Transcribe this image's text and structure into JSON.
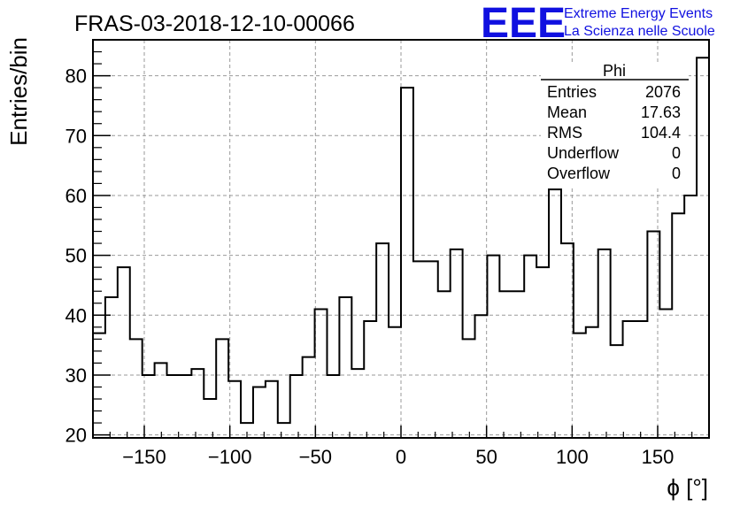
{
  "chart_data": {
    "type": "histogram",
    "title": "FRAS-03-2018-12-10-00066",
    "xlabel": "ϕ [°]",
    "ylabel": "Entries/bin",
    "xlim": [
      -180,
      180
    ],
    "ylim": [
      19.5,
      86
    ],
    "grid": true,
    "x_ticks": [
      -150,
      -100,
      -50,
      0,
      50,
      100,
      150
    ],
    "x_tick_labels": [
      "−150",
      "−100",
      "−50",
      "0",
      "50",
      "100",
      "150"
    ],
    "y_ticks": [
      20,
      30,
      40,
      50,
      60,
      70,
      80
    ],
    "y_tick_labels": [
      "20",
      "30",
      "40",
      "50",
      "60",
      "70",
      "80"
    ],
    "bin_width": 7.2,
    "values": [
      37,
      43,
      48,
      36,
      30,
      32,
      30,
      30,
      31,
      26,
      36,
      29,
      22,
      28,
      29,
      22,
      30,
      33,
      41,
      30,
      43,
      31,
      39,
      52,
      38,
      78,
      49,
      49,
      44,
      51,
      36,
      40,
      50,
      44,
      44,
      50,
      48,
      61,
      52,
      37,
      38,
      51,
      35,
      39,
      39,
      54,
      41,
      57,
      60,
      83
    ],
    "stats": {
      "name": "Phi",
      "rows": [
        {
          "label": "Entries",
          "value": "2076"
        },
        {
          "label": "Mean",
          "value": "17.63"
        },
        {
          "label": "RMS",
          "value": "104.4"
        },
        {
          "label": "Underflow",
          "value": "0"
        },
        {
          "label": "Overflow",
          "value": "0"
        }
      ]
    }
  },
  "logo": {
    "text": "EEE",
    "line1": "Extreme Energy Events",
    "line2": "La Scienza nelle Scuole",
    "color": "#1010e0"
  }
}
